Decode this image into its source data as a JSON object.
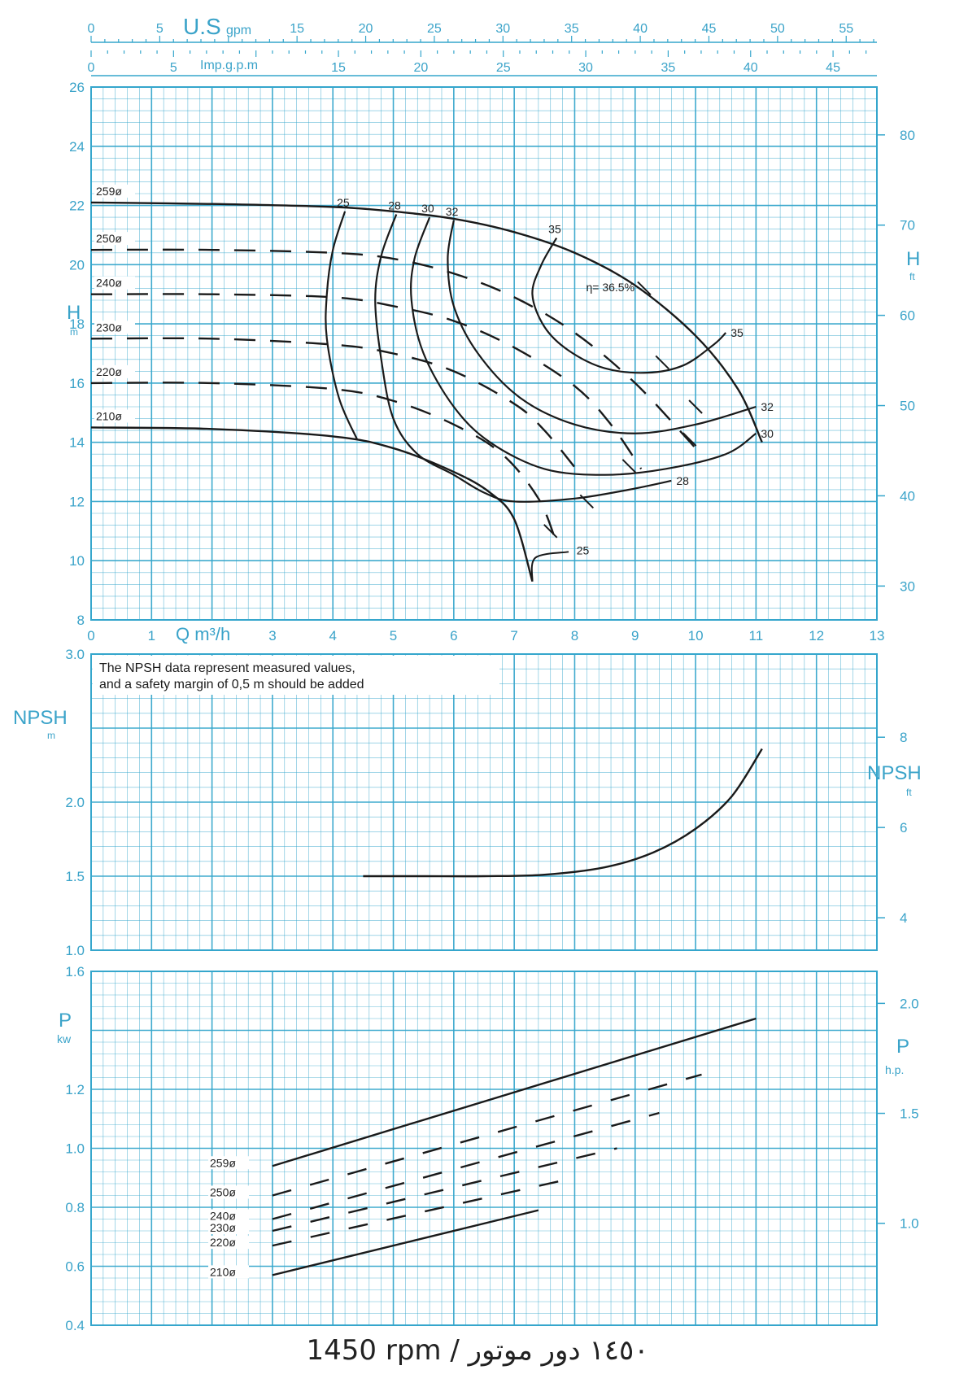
{
  "footer": "1450 rpm / ١٤٥٠ دور موتور",
  "colors": {
    "grid": "#35a6cc",
    "curve": "#1a1a1a",
    "label": "#3aa3c9"
  },
  "top_axes": {
    "usgpm": {
      "label_main": "U.S",
      "label_sub": "gpm",
      "ticks": [
        "0",
        "5",
        "15",
        "20",
        "25",
        "30",
        "35",
        "40",
        "45",
        "50",
        "55"
      ]
    },
    "impgpm": {
      "label": "Imp.g.p.m",
      "ticks": [
        "0",
        "5",
        "15",
        "20",
        "25",
        "30",
        "35",
        "40",
        "45"
      ]
    }
  },
  "chart_data": [
    {
      "type": "line",
      "name": "head",
      "xlabel": "Q m³/h",
      "ylabel": "H",
      "ylabel_unit": "m",
      "y2label": "H",
      "y2label_unit": "ft",
      "xlim": [
        0,
        13
      ],
      "ylim": [
        8,
        26
      ],
      "x_ticks": [
        "0",
        "1",
        "3",
        "4",
        "5",
        "6",
        "7",
        "8",
        "9",
        "10",
        "11",
        "12",
        "13"
      ],
      "y_ticks": [
        "8",
        "10",
        "12",
        "14",
        "16",
        "18",
        "20",
        "22",
        "24",
        "26"
      ],
      "y2_ticks": [
        "30",
        "40",
        "50",
        "60",
        "70",
        "80"
      ],
      "grid": true,
      "series": [
        {
          "name": "259ø",
          "style": "solid",
          "points": [
            [
              0,
              22.1
            ],
            [
              2,
              22.05
            ],
            [
              4,
              21.95
            ],
            [
              5,
              21.8
            ],
            [
              6,
              21.55
            ],
            [
              7,
              21.1
            ],
            [
              8,
              20.4
            ],
            [
              9,
              19.3
            ],
            [
              10,
              17.6
            ],
            [
              10.7,
              15.8
            ],
            [
              11.1,
              14
            ]
          ]
        },
        {
          "name": "250ø",
          "style": "dashed",
          "points": [
            [
              0,
              20.5
            ],
            [
              2,
              20.5
            ],
            [
              4,
              20.4
            ],
            [
              5,
              20.2
            ],
            [
              6,
              19.7
            ],
            [
              7,
              18.9
            ],
            [
              8,
              17.7
            ],
            [
              9,
              16
            ],
            [
              10,
              13.8
            ]
          ]
        },
        {
          "name": "240ø",
          "style": "dashed",
          "points": [
            [
              0,
              19
            ],
            [
              2,
              19
            ],
            [
              4,
              18.9
            ],
            [
              5,
              18.6
            ],
            [
              6,
              18.1
            ],
            [
              7,
              17.2
            ],
            [
              8,
              15.9
            ],
            [
              8.6,
              14.6
            ],
            [
              9.1,
              13.1
            ]
          ]
        },
        {
          "name": "230ø",
          "style": "dashed",
          "points": [
            [
              0,
              17.5
            ],
            [
              2,
              17.5
            ],
            [
              4,
              17.3
            ],
            [
              5,
              17
            ],
            [
              6,
              16.4
            ],
            [
              7,
              15.3
            ],
            [
              7.5,
              14.4
            ],
            [
              8.1,
              12.9
            ]
          ]
        },
        {
          "name": "220ø",
          "style": "dashed",
          "points": [
            [
              0,
              16
            ],
            [
              2,
              16
            ],
            [
              4,
              15.8
            ],
            [
              5,
              15.4
            ],
            [
              6,
              14.6
            ],
            [
              6.8,
              13.6
            ],
            [
              7.4,
              12.1
            ],
            [
              7.7,
              10.6
            ]
          ]
        },
        {
          "name": "210ø",
          "style": "solid",
          "points": [
            [
              0,
              14.5
            ],
            [
              2,
              14.45
            ],
            [
              4,
              14.2
            ],
            [
              5,
              13.8
            ],
            [
              6,
              13
            ],
            [
              6.6,
              12.3
            ],
            [
              7,
              11.4
            ],
            [
              7.3,
              9.3
            ]
          ]
        }
      ],
      "efficiency": [
        {
          "label": "25",
          "points": [
            [
              4.2,
              21.8
            ],
            [
              4,
              20.5
            ],
            [
              3.9,
              19
            ],
            [
              3.9,
              17.5
            ],
            [
              4.1,
              15.5
            ],
            [
              4.4,
              14.1
            ]
          ]
        },
        {
          "label": "28",
          "points": [
            [
              5.05,
              21.7
            ],
            [
              4.8,
              20.3
            ],
            [
              4.7,
              18.8
            ],
            [
              4.8,
              16.8
            ],
            [
              5,
              14.8
            ],
            [
              5.4,
              13.6
            ],
            [
              6,
              12.9
            ],
            [
              6.5,
              12.3
            ],
            [
              7,
              12
            ],
            [
              8,
              12.1
            ],
            [
              8.9,
              12.4
            ],
            [
              9.6,
              12.7
            ]
          ]
        },
        {
          "label": "30",
          "points": [
            [
              5.6,
              21.6
            ],
            [
              5.35,
              20.2
            ],
            [
              5.3,
              18.8
            ],
            [
              5.5,
              17
            ],
            [
              6,
              15.2
            ],
            [
              6.6,
              14
            ],
            [
              7.5,
              13.1
            ],
            [
              8.5,
              12.9
            ],
            [
              9.5,
              13.1
            ],
            [
              10.5,
              13.6
            ],
            [
              11,
              14.3
            ]
          ]
        },
        {
          "label": "32",
          "points": [
            [
              6,
              21.5
            ],
            [
              5.9,
              20.2
            ],
            [
              6,
              18.6
            ],
            [
              6.4,
              17
            ],
            [
              7.1,
              15.5
            ],
            [
              8,
              14.6
            ],
            [
              9,
              14.3
            ],
            [
              10,
              14.6
            ],
            [
              11,
              15.2
            ]
          ]
        },
        {
          "label": "35",
          "points": [
            [
              7.7,
              20.9
            ],
            [
              7.45,
              20
            ],
            [
              7.3,
              19
            ],
            [
              7.5,
              17.9
            ],
            [
              7.9,
              17.1
            ],
            [
              8.5,
              16.5
            ],
            [
              9.2,
              16.35
            ],
            [
              9.8,
              16.6
            ],
            [
              10.3,
              17.3
            ],
            [
              10.5,
              17.7
            ]
          ]
        }
      ],
      "eff_peak_label": "η= 36.5%",
      "eff_peak_point": [
        9.4,
        19.6
      ],
      "eff_markers": [
        [
          9.15,
          19.2
        ],
        [
          9.45,
          16.7
        ],
        [
          10.0,
          15.2
        ],
        [
          9.9,
          14.1
        ],
        [
          8.9,
          13.2
        ],
        [
          8.2,
          12.0
        ],
        [
          7.6,
          11.0
        ]
      ]
    },
    {
      "type": "line",
      "name": "npsh",
      "ylabel": "NPSH",
      "ylabel_unit": "m",
      "y2label": "NPSH",
      "y2label_unit": "ft",
      "xlim": [
        0,
        13
      ],
      "ylim": [
        1.0,
        3.0
      ],
      "y_ticks": [
        "1.0",
        "1.5",
        "2.0",
        "3.0"
      ],
      "y2_ticks": [
        "4",
        "6",
        "8"
      ],
      "annotation": [
        "The NPSH data represent measured values,",
        "and a safety margin of 0,5 m should be added"
      ],
      "grid": true,
      "series": [
        {
          "name": "",
          "style": "solid",
          "points": [
            [
              4.5,
              1.5
            ],
            [
              5.5,
              1.5
            ],
            [
              6.5,
              1.5
            ],
            [
              7.5,
              1.51
            ],
            [
              8.5,
              1.56
            ],
            [
              9.3,
              1.66
            ],
            [
              10,
              1.82
            ],
            [
              10.6,
              2.04
            ],
            [
              11.1,
              2.36
            ]
          ]
        }
      ]
    },
    {
      "type": "line",
      "name": "power",
      "ylabel": "P",
      "ylabel_unit": "kw",
      "y2label": "P",
      "y2label_unit": "h.p.",
      "xlim": [
        0,
        13
      ],
      "ylim": [
        0.4,
        1.6
      ],
      "y_ticks": [
        "0.4",
        "0.6",
        "0.8",
        "1.0",
        "1.2",
        "1.6"
      ],
      "y2_ticks": [
        "1.0",
        "1.5",
        "2.0"
      ],
      "grid": true,
      "series": [
        {
          "name": "259ø",
          "style": "solid",
          "points": [
            [
              3,
              0.94
            ],
            [
              11,
              1.44
            ]
          ]
        },
        {
          "name": "250ø",
          "style": "dashed",
          "points": [
            [
              3,
              0.84
            ],
            [
              10.1,
              1.25
            ]
          ]
        },
        {
          "name": "240ø",
          "style": "dashed",
          "points": [
            [
              3,
              0.76
            ],
            [
              9.4,
              1.12
            ]
          ]
        },
        {
          "name": "230ø",
          "style": "dashed",
          "points": [
            [
              3,
              0.72
            ],
            [
              8.7,
              1.0
            ]
          ]
        },
        {
          "name": "220ø",
          "style": "dashed",
          "points": [
            [
              3,
              0.67
            ],
            [
              8,
              0.9
            ]
          ]
        },
        {
          "name": "210ø",
          "style": "solid",
          "points": [
            [
              3,
              0.57
            ],
            [
              7.4,
              0.79
            ]
          ]
        }
      ]
    }
  ]
}
